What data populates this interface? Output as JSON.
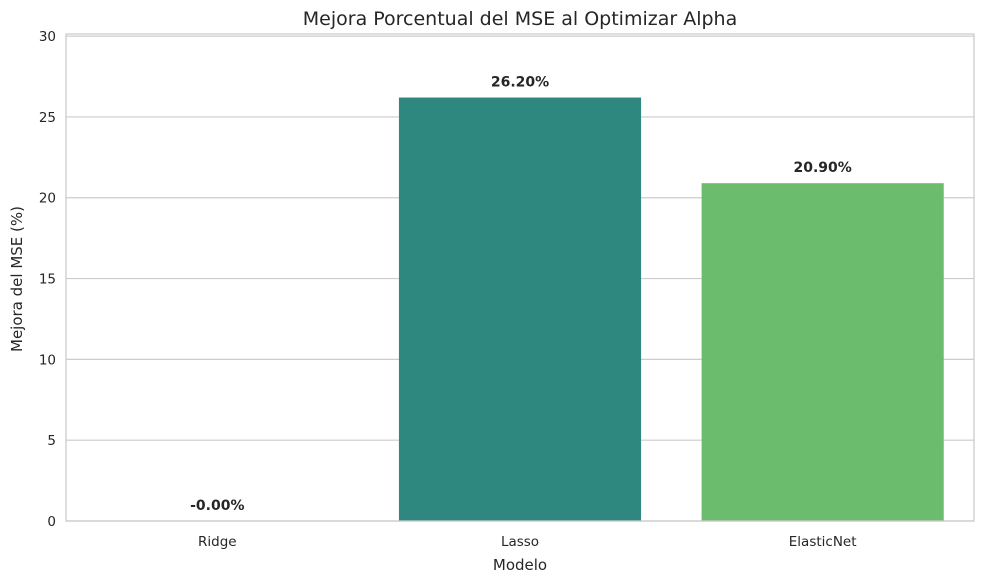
{
  "chart_data": {
    "type": "bar",
    "title": "Mejora Porcentual del MSE al Optimizar Alpha",
    "xlabel": "Modelo",
    "ylabel": "Mejora del MSE (%)",
    "categories": [
      "Ridge",
      "Lasso",
      "ElasticNet"
    ],
    "values": [
      -0.0,
      26.2,
      20.9
    ],
    "data_labels": [
      "-0.00%",
      "26.20%",
      "20.90%"
    ],
    "colors": [
      "#440154",
      "#2e8880",
      "#6bbd6d"
    ],
    "ylim": [
      0,
      30.13
    ],
    "yticks": [
      0,
      5,
      10,
      15,
      20,
      25,
      30
    ],
    "ytick_labels": [
      "0",
      "5",
      "10",
      "15",
      "20",
      "25",
      "30"
    ],
    "grid": true,
    "legend": "none"
  }
}
